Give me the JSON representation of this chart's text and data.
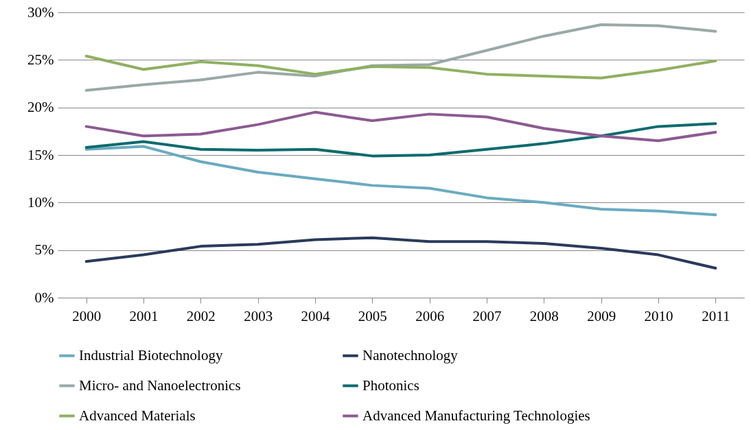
{
  "chart_data": {
    "type": "line",
    "categories": [
      "2000",
      "2001",
      "2002",
      "2003",
      "2004",
      "2005",
      "2006",
      "2007",
      "2008",
      "2009",
      "2010",
      "2011"
    ],
    "series": [
      {
        "name": "Industrial Biotechnology",
        "color": "#6aabc0",
        "values": [
          15.6,
          15.9,
          14.3,
          13.2,
          12.5,
          11.8,
          11.5,
          10.5,
          10.0,
          9.3,
          9.1,
          8.7
        ]
      },
      {
        "name": "Nanotechnology",
        "color": "#2a3a5c",
        "values": [
          3.8,
          4.5,
          5.4,
          5.6,
          6.1,
          6.3,
          5.9,
          5.9,
          5.7,
          5.2,
          4.5,
          3.1
        ]
      },
      {
        "name": "Micro- and Nanoelectronics",
        "color": "#9aa8a8",
        "values": [
          21.8,
          22.4,
          22.9,
          23.7,
          23.3,
          24.4,
          24.5,
          26.0,
          27.5,
          28.7,
          28.6,
          28.0
        ]
      },
      {
        "name": "Photonics",
        "color": "#0b6b6e",
        "values": [
          15.8,
          16.4,
          15.6,
          15.5,
          15.6,
          14.9,
          15.0,
          15.6,
          16.2,
          17.0,
          18.0,
          18.3
        ]
      },
      {
        "name": "Advanced Materials",
        "color": "#8fb061",
        "values": [
          25.4,
          24.0,
          24.8,
          24.4,
          23.5,
          24.3,
          24.2,
          23.5,
          23.3,
          23.1,
          23.9,
          24.9
        ]
      },
      {
        "name": "Advanced Manufacturing Technologies",
        "color": "#8c5a92",
        "values": [
          18.0,
          17.0,
          17.2,
          18.2,
          19.5,
          18.6,
          19.3,
          19.0,
          17.8,
          17.0,
          16.5,
          17.4
        ]
      }
    ],
    "ylim": [
      0,
      30
    ],
    "yticks": [
      {
        "value": 0,
        "label": "0%"
      },
      {
        "value": 5,
        "label": "5%"
      },
      {
        "value": 10,
        "label": "10%"
      },
      {
        "value": 15,
        "label": "15%"
      },
      {
        "value": 20,
        "label": "20%"
      },
      {
        "value": 25,
        "label": "25%"
      },
      {
        "value": 30,
        "label": "30%"
      }
    ],
    "grid": "y",
    "legend": "bottom",
    "marker": "none",
    "line_style": "solid"
  }
}
